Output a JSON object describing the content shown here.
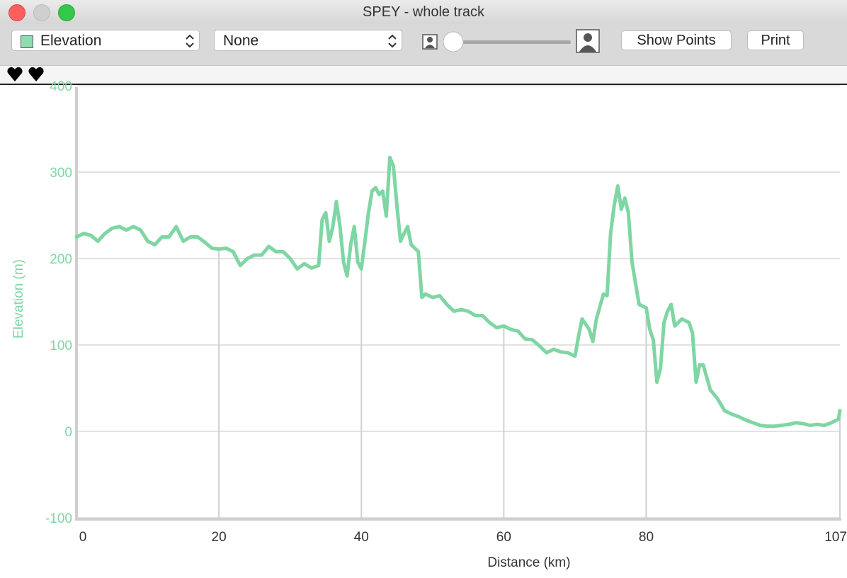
{
  "window": {
    "title": "SPEY - whole track"
  },
  "toolbar": {
    "left_select": "Elevation",
    "right_select": "None",
    "buttons": [
      "Show Points",
      "Print"
    ]
  },
  "chart_data": {
    "type": "line",
    "x_label": "Distance (km)",
    "y_label": "Elevation (m)",
    "color": "#7fd6a4",
    "x": [
      0,
      1,
      2,
      3,
      4,
      5,
      6,
      7,
      8,
      9,
      10,
      11,
      12,
      13,
      14,
      15,
      16,
      17,
      18,
      19,
      20,
      21,
      22,
      23,
      24,
      25,
      26,
      27,
      28,
      29,
      30,
      31,
      32,
      33,
      34,
      34.5,
      35,
      35.5,
      36,
      36.5,
      37,
      37.5,
      38,
      38.5,
      39,
      39.5,
      40,
      40.5,
      41,
      41.5,
      42,
      42.5,
      43,
      43.5,
      44,
      44.5,
      45,
      45.5,
      46,
      46.5,
      47,
      48,
      48.5,
      49,
      50,
      51,
      52,
      53,
      54,
      55,
      56,
      57,
      58,
      59,
      60,
      61,
      62,
      63,
      64,
      65,
      66,
      67,
      68,
      69,
      70,
      70.5,
      71,
      72,
      72.5,
      73,
      74,
      74.5,
      75,
      75.5,
      76,
      76.5,
      77,
      77.5,
      78,
      79,
      80,
      80.5,
      81,
      81.5,
      82,
      82.5,
      83,
      83.5,
      84,
      85,
      86,
      86.5,
      87,
      87.5,
      88,
      89,
      90,
      91,
      92,
      93,
      94,
      95,
      96,
      97,
      98,
      99,
      100,
      101,
      102,
      103,
      104,
      105,
      106,
      107,
      107.2
    ],
    "values": [
      225,
      229,
      227,
      220,
      229,
      235,
      237,
      233,
      237,
      233,
      220,
      216,
      225,
      225,
      237,
      220,
      225,
      225,
      219,
      212,
      211,
      212,
      208,
      192,
      200,
      204,
      204,
      214,
      208,
      208,
      200,
      188,
      194,
      189,
      192,
      245,
      253,
      220,
      237,
      266,
      237,
      196,
      180,
      216,
      237,
      196,
      188,
      220,
      253,
      278,
      282,
      274,
      278,
      249,
      317,
      307,
      261,
      220,
      229,
      237,
      216,
      208,
      155,
      159,
      155,
      157,
      147,
      139,
      141,
      139,
      134,
      134,
      126,
      120,
      122,
      118,
      116,
      107,
      106,
      99,
      91,
      95,
      92,
      91,
      87,
      110,
      130,
      118,
      104,
      130,
      159,
      157,
      229,
      261,
      284,
      257,
      270,
      253,
      196,
      147,
      143,
      118,
      106,
      57,
      73,
      126,
      139,
      147,
      122,
      130,
      126,
      114,
      57,
      77,
      77,
      48,
      38,
      24,
      20,
      17,
      13,
      10,
      7,
      6,
      6,
      7,
      8,
      10,
      9,
      7,
      8,
      7,
      10,
      14,
      24
    ],
    "xlim": [
      0,
      107.2
    ],
    "xticks": [
      0,
      20,
      40,
      60,
      80,
      107.2
    ],
    "ylim": [
      -100,
      400
    ],
    "yticks": [
      -100,
      0,
      100,
      200,
      300,
      400
    ],
    "grid": true
  }
}
